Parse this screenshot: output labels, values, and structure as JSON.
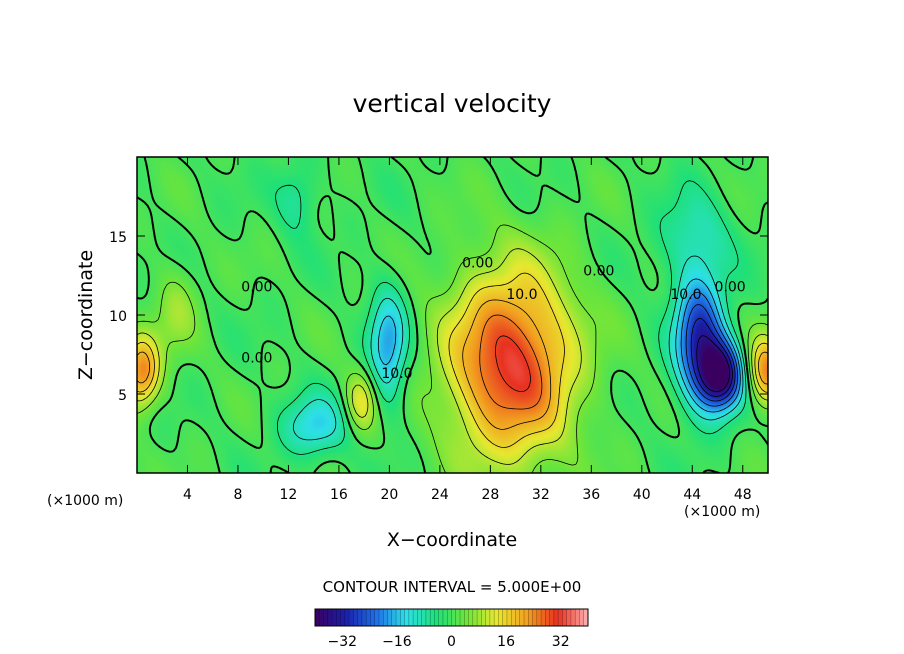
{
  "chart_data": {
    "type": "heatmap",
    "title": "vertical velocity",
    "xlabel": "X−coordinate",
    "ylabel": "Z−coordinate",
    "x_unit": "(×1000 m)",
    "y_unit": "(×1000 m)",
    "xlim": [
      0,
      50
    ],
    "ylim": [
      0,
      20
    ],
    "x_ticks": [
      4,
      8,
      12,
      16,
      20,
      24,
      28,
      32,
      36,
      40,
      44,
      48
    ],
    "y_ticks": [
      5,
      10,
      15
    ],
    "x_tick_labels": [
      "4",
      "8",
      "12",
      "16",
      "20",
      "24",
      "28",
      "32",
      "36",
      "40",
      "44",
      "48"
    ],
    "y_tick_labels": [
      "5",
      "10",
      "15"
    ],
    "contour_interval_text": "CONTOUR INTERVAL =  5.000E+00",
    "contour_interval": 5,
    "colorbar": {
      "range": [
        -40,
        40
      ],
      "ticks": [
        -32,
        -16,
        0,
        16,
        32
      ],
      "tick_labels": [
        "−32",
        "−16",
        "0",
        "16",
        "32"
      ],
      "colors": [
        "#3a0060",
        "#1a1fa8",
        "#1f6fe6",
        "#2ee0e8",
        "#1ee07a",
        "#6ee53a",
        "#e8e830",
        "#f2a020",
        "#e83020",
        "#ffb0b0"
      ]
    },
    "contour_labels": [
      {
        "text": "0.00",
        "x": 9.5,
        "z": 11.5
      },
      {
        "text": "0.00",
        "x": 9.5,
        "z": 7.0
      },
      {
        "text": "0.00",
        "x": 27.0,
        "z": 13.0
      },
      {
        "text": "10.0",
        "x": 30.5,
        "z": 11.0
      },
      {
        "text": "0.00",
        "x": 36.6,
        "z": 12.5
      },
      {
        "text": "0.00",
        "x": 47.0,
        "z": 11.5
      },
      {
        "text": "10.0",
        "x": 20.6,
        "z": 6.0
      },
      {
        "text": "10.0",
        "x": 43.5,
        "z": 11.0
      }
    ],
    "field_features": [
      {
        "kind": "updraft",
        "x": 29.5,
        "z": 7.0,
        "peak": 32,
        "sx": 3.5,
        "sz": 4.2
      },
      {
        "kind": "updraft",
        "x": 0.3,
        "z": 6.5,
        "peak": 24,
        "sx": 1.0,
        "sz": 1.6
      },
      {
        "kind": "updraft",
        "x": 49.8,
        "z": 6.5,
        "peak": 24,
        "sx": 1.0,
        "sz": 1.6
      },
      {
        "kind": "updraft",
        "x": 17.7,
        "z": 4.6,
        "peak": 14,
        "sx": 0.9,
        "sz": 1.4
      },
      {
        "kind": "updraft",
        "x": 3.0,
        "z": 10.5,
        "peak": 7,
        "sx": 1.2,
        "sz": 2.0
      },
      {
        "kind": "downdraft",
        "x": 44.5,
        "z": 8.5,
        "peak": -30,
        "sx": 1.4,
        "sz": 2.8
      },
      {
        "kind": "downdraft",
        "x": 46.2,
        "z": 6.2,
        "peak": -36,
        "sx": 1.2,
        "sz": 1.5
      },
      {
        "kind": "downdraft",
        "x": 19.8,
        "z": 8.0,
        "peak": -18,
        "sx": 1.1,
        "sz": 2.6
      },
      {
        "kind": "downdraft",
        "x": 14.0,
        "z": 3.0,
        "peak": -14,
        "sx": 1.8,
        "sz": 1.4
      },
      {
        "kind": "downdraft",
        "x": 12.6,
        "z": 17.5,
        "peak": -8,
        "sx": 1.2,
        "sz": 1.6
      },
      {
        "kind": "downdraft",
        "x": 44.0,
        "z": 15.0,
        "peak": -9,
        "sx": 2.0,
        "sz": 2.0
      }
    ]
  }
}
